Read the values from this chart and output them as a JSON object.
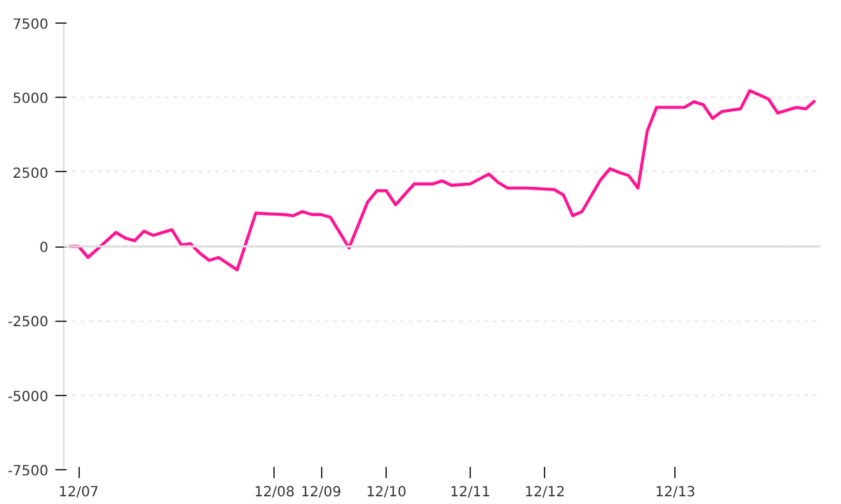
{
  "chart_data": {
    "type": "line",
    "categories": [
      null,
      "12/07",
      null,
      null,
      null,
      null,
      null,
      null,
      null,
      null,
      null,
      null,
      null,
      null,
      null,
      null,
      null,
      null,
      null,
      null,
      null,
      null,
      "12/08",
      null,
      null,
      null,
      null,
      "12/09",
      null,
      null,
      null,
      null,
      null,
      null,
      "12/10",
      null,
      null,
      null,
      null,
      null,
      null,
      null,
      null,
      "12/11",
      null,
      null,
      null,
      null,
      null,
      null,
      null,
      "12/12",
      null,
      null,
      null,
      null,
      null,
      null,
      null,
      null,
      null,
      null,
      null,
      null,
      null,
      "12/13",
      null,
      null,
      null,
      null,
      null,
      null,
      null,
      null,
      null,
      null,
      null,
      null,
      null,
      null,
      null
    ],
    "series": [
      {
        "color": "#ff1493",
        "values": [
          0,
          0,
          -370,
          -90,
          190,
          470,
          280,
          190,
          510,
          370,
          465,
          560,
          50,
          90,
          -230,
          -470,
          -370,
          -580,
          -790,
          165,
          1120,
          1100,
          1085,
          1070,
          1030,
          1170,
          1070,
          1070,
          980,
          465,
          -50,
          720,
          1490,
          1870,
          1870,
          1400,
          1750,
          2100,
          2100,
          2100,
          2200,
          2050,
          2075,
          2100,
          2265,
          2430,
          2150,
          1960,
          1960,
          1960,
          1945,
          1925,
          1910,
          1730,
          1030,
          1170,
          1705,
          2240,
          2610,
          2480,
          2380,
          1960,
          3880,
          4670,
          4670,
          4670,
          4670,
          4860,
          4760,
          4300,
          4530,
          4575,
          4620,
          5230,
          5090,
          4950,
          4480,
          4575,
          4670,
          4620,
          4900
        ]
      }
    ],
    "ylim": [
      -7500,
      7500
    ],
    "yticks": [
      -7500,
      -5000,
      -2500,
      0,
      2500,
      5000,
      7500
    ],
    "grid": "y",
    "ref_lines": [
      {
        "axis": "y",
        "value": 0,
        "color": "#dddddd"
      }
    ],
    "marker": "none",
    "line_style": "solid"
  }
}
